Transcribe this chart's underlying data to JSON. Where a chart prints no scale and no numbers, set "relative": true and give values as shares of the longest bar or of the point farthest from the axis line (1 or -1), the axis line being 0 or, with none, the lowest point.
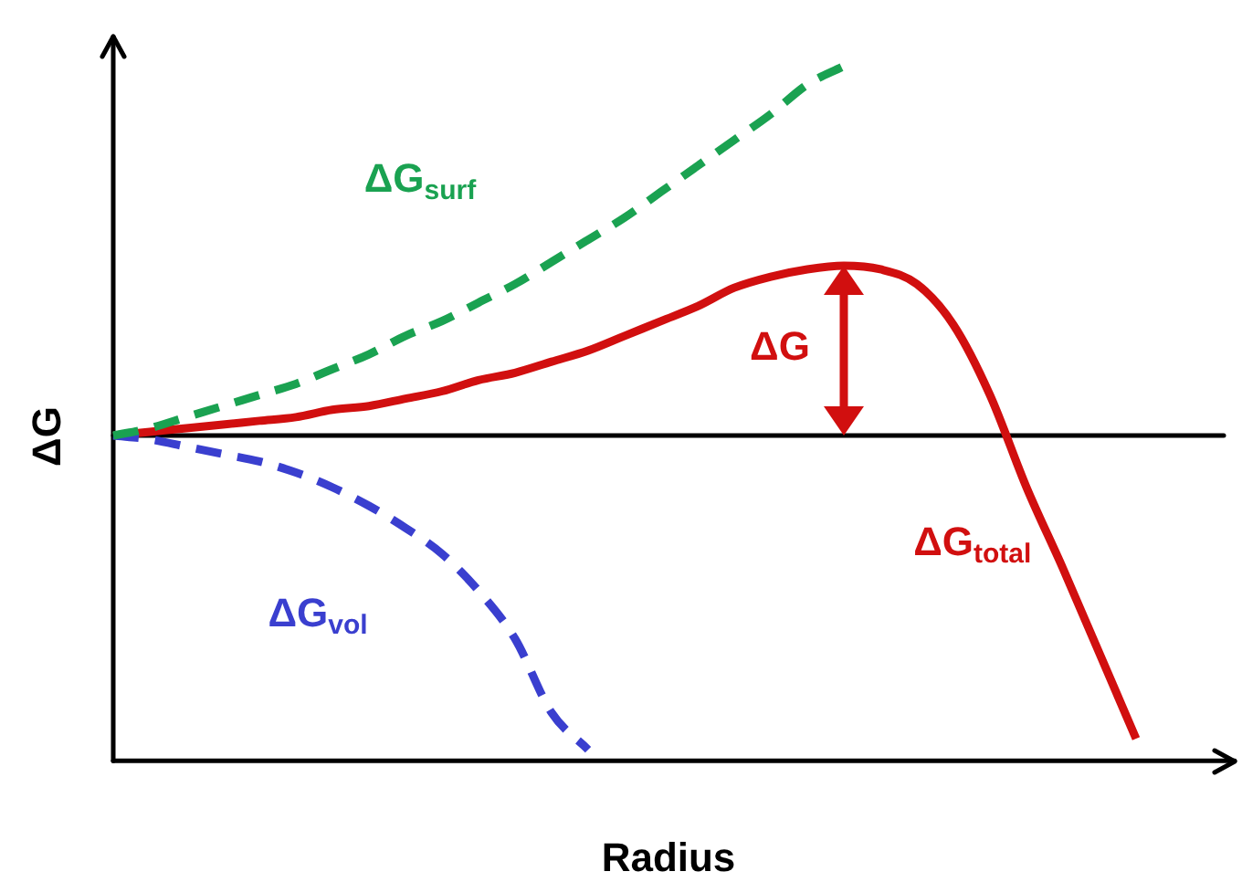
{
  "chart_data": {
    "type": "line",
    "relative": true,
    "xlabel": "Radius",
    "ylabel": "ΔG",
    "legend": false,
    "grid": false,
    "marker": "none",
    "categories": [
      null,
      null,
      null,
      null,
      null,
      null,
      null,
      null,
      null,
      null,
      null,
      null,
      null,
      null,
      null,
      null,
      null,
      null,
      null,
      null,
      null,
      null,
      null,
      null,
      null,
      null,
      null,
      null,
      null
    ],
    "series": [
      {
        "name": "ΔG$_{surf}$",
        "color": "#1aa251",
        "line_style": "dashed",
        "values": [
          0,
          0.02,
          0.05,
          0.08,
          0.11,
          0.14,
          0.18,
          0.22,
          0.27,
          0.31,
          0.36,
          0.41,
          0.47,
          0.53,
          0.59,
          0.66,
          0.73,
          0.8,
          0.87,
          0.95,
          1,
          null,
          null,
          null,
          null,
          null,
          null,
          null,
          null
        ]
      },
      {
        "name": "ΔG$_{vol}$",
        "color": "#3a3fcf",
        "line_style": "dashed",
        "values": [
          0,
          -0.01,
          -0.03,
          -0.05,
          -0.07,
          -0.1,
          -0.14,
          -0.19,
          -0.25,
          -0.32,
          -0.42,
          -0.55,
          -0.75,
          -0.85,
          null,
          null,
          null,
          null,
          null,
          null,
          null,
          null,
          null,
          null,
          null,
          null,
          null,
          null,
          null
        ]
      },
      {
        "name": "ΔG$_{total}$",
        "color": "#d10f0f",
        "line_style": "solid",
        "values": [
          0,
          0.01,
          0.02,
          0.03,
          0.04,
          0.05,
          0.07,
          0.08,
          0.1,
          0.12,
          0.15,
          0.17,
          0.2,
          0.23,
          0.27,
          0.31,
          0.35,
          0.4,
          0.43,
          0.45,
          0.46,
          0.45,
          0.41,
          0.3,
          0.11,
          -0.14,
          -0.36,
          -0.59,
          -0.82
        ]
      }
    ],
    "annotations": [
      {
        "text": "ΔG",
        "y": 0.46
      }
    ]
  }
}
